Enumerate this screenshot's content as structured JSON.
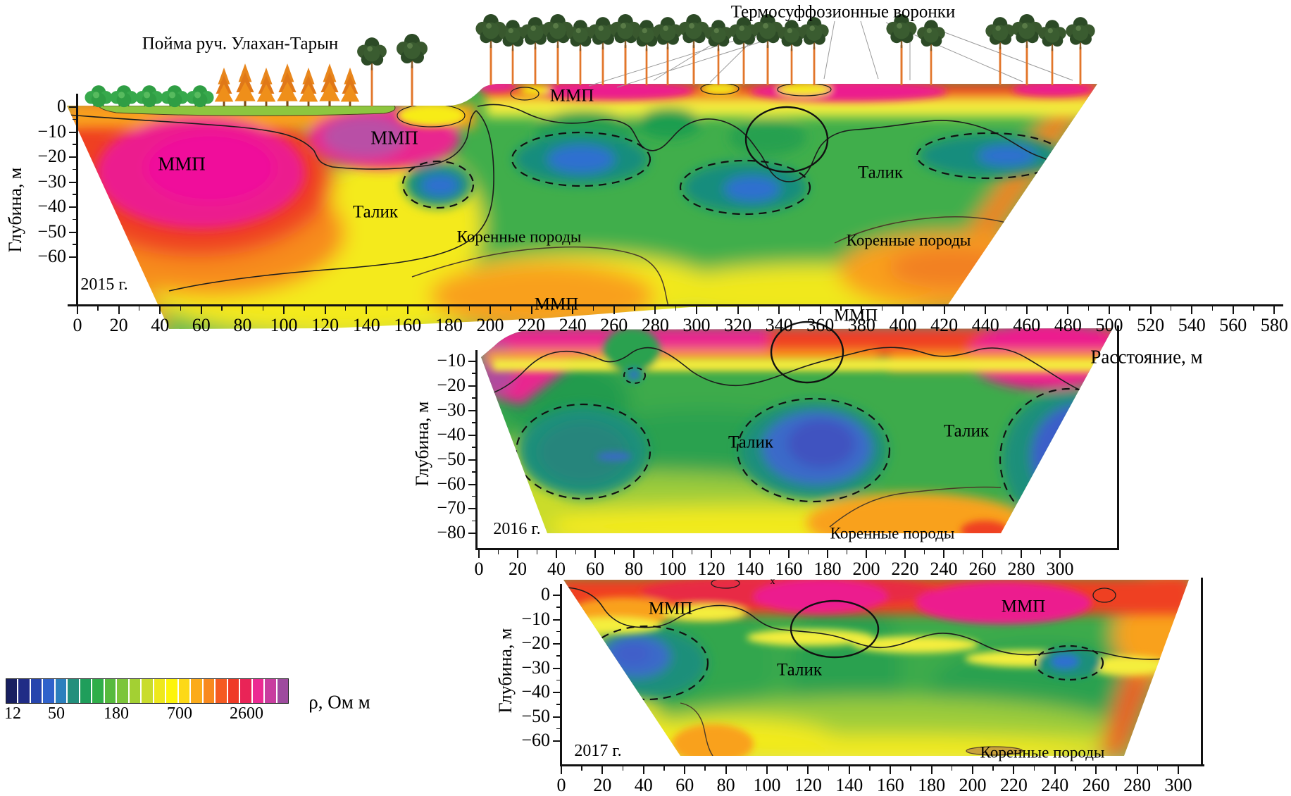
{
  "figure": {
    "titles": {
      "floodplain_title": "Пойма руч. Улахан-Тарын",
      "funnels_title": "Термосуффозионные воронки"
    },
    "axes": {
      "distance_label": "Расстояние, м",
      "depth_label": "Глубина, м"
    },
    "colorbar": {
      "label": "ρ, Ом м",
      "tick_labels": [
        "12",
        "50",
        "180",
        "700",
        "2600"
      ],
      "colors": [
        "#181f60",
        "#202c86",
        "#2745ad",
        "#2f62cb",
        "#2b7fbd",
        "#238f7c",
        "#1f9e5b",
        "#2fae49",
        "#56ba3e",
        "#7cc53a",
        "#a3d033",
        "#c9dc2c",
        "#eee81c",
        "#fdf40a",
        "#fdd916",
        "#fbab1b",
        "#f8891e",
        "#f55a21",
        "#ef3a26",
        "#e92457",
        "#ec2b92",
        "#c83d9f",
        "#9e4b9e"
      ]
    },
    "key_colors": {
      "permafrost_magenta": "#ec1c8e",
      "high_resistivity_red": "#ef4123",
      "talik_green": "#3cab4c",
      "low_resistivity_blue": "#3a6bc9",
      "bedrock_orange": "#f9a11b"
    },
    "vegetation": {
      "bush_count": 5,
      "larch_count": 7,
      "pine_count": 23
    },
    "sections": [
      {
        "id": "2015",
        "year_label": "2015 г.",
        "x_ticks": [
          "0",
          "20",
          "40",
          "60",
          "80",
          "100",
          "120",
          "140",
          "160",
          "180",
          "200",
          "220",
          "240",
          "260",
          "280",
          "300",
          "320",
          "340",
          "360",
          "380",
          "400",
          "420",
          "440",
          "460",
          "480",
          "500",
          "520",
          "540",
          "560",
          "580"
        ],
        "y_ticks": [
          "0",
          "−10",
          "−20",
          "−30",
          "−40",
          "−50",
          "−60"
        ],
        "labels": {
          "mmp_left": "ММП",
          "mmp_floodplain": "ММП",
          "mmp_top": "ММП",
          "talik_left": "Талик",
          "talik_right": "Талик",
          "bedrock_center": "Коренные породы",
          "bedrock_right": "Коренные породы"
        }
      },
      {
        "id": "2016",
        "year_label": "2016 г.",
        "x_ticks": [
          "0",
          "20",
          "40",
          "60",
          "80",
          "100",
          "120",
          "140",
          "160",
          "180",
          "200",
          "220",
          "240",
          "260",
          "280",
          "300"
        ],
        "y_ticks": [
          "−10",
          "−20",
          "−30",
          "−40",
          "−50",
          "−60",
          "−70",
          "−80"
        ],
        "labels": {
          "mmp_top": "ММП",
          "mmp_right": "ММП",
          "talik_center": "Талик",
          "talik_right": "Талик",
          "bedrock": "Коренные породы"
        }
      },
      {
        "id": "2017",
        "year_label": "2017 г.",
        "x_ticks": [
          "0",
          "20",
          "40",
          "60",
          "80",
          "100",
          "120",
          "140",
          "160",
          "180",
          "200",
          "220",
          "240",
          "260",
          "280",
          "300"
        ],
        "y_ticks": [
          "0",
          "−10",
          "−20",
          "−30",
          "−40",
          "−50",
          "−60"
        ],
        "labels": {
          "mmp_left": "ММП",
          "mmp_right": "ММП",
          "talik": "Талик",
          "bedrock": "Коренные породы",
          "marker": "x"
        }
      }
    ]
  },
  "chart_data": {
    "type": "heatmap",
    "subtype": "electrical_resistivity_tomography_depth_sections",
    "units": {
      "distance": "м",
      "depth": "м",
      "resistivity": "Ом·м"
    },
    "x_axis_label": "Расстояние, м",
    "y_axis_label": "Глубина, м",
    "colorbar": {
      "label": "ρ, Ом м",
      "scale": "logarithmic",
      "ticks": [
        12,
        50,
        180,
        700,
        2600
      ]
    },
    "surface_annotations": [
      {
        "text": "Пойма руч. Улахан-Тарын",
        "section": 2015,
        "x_m": [
          0,
          190
        ]
      },
      {
        "text": "Термосуффозионные воронки",
        "section": 2015,
        "x_m": [
          280,
          500
        ]
      }
    ],
    "sections": [
      {
        "year": 2015,
        "x_range_m": [
          0,
          580
        ],
        "x_tick_step_m": 20,
        "depth_ticks_m": [
          0,
          -10,
          -20,
          -30,
          -40,
          -50,
          -60
        ],
        "depth_tick_step_m": 10,
        "zones": [
          {
            "label": "ММП",
            "kind": "permafrost_high_resistivity",
            "x_m": [
              0,
              120
            ],
            "depth_m": [
              0,
              -60
            ],
            "peak_resistivity_ohm_m": 2600
          },
          {
            "label": "ММП",
            "kind": "permafrost_high_resistivity",
            "x_m": [
              115,
              200
            ],
            "depth_m": [
              0,
              -28
            ]
          },
          {
            "label": "ММП",
            "kind": "frozen_surface_cap",
            "x_m": [
              200,
              495
            ],
            "depth_m": [
              0,
              -12
            ]
          },
          {
            "label": "Талик",
            "kind": "unfrozen_zone",
            "x_m": [
              130,
              210
            ],
            "depth_m": [
              -28,
              -65
            ]
          },
          {
            "label": "Талик",
            "kind": "unfrozen_zone",
            "x_m": [
              205,
              495
            ],
            "depth_m": [
              -12,
              -60
            ]
          },
          {
            "kind": "low_resistivity_lens",
            "x_m": [
              162,
              193
            ],
            "depth_m": [
              -28,
              -47
            ]
          },
          {
            "kind": "low_resistivity_lens",
            "x_m": [
              213,
              275
            ],
            "depth_m": [
              -25,
              -46
            ]
          },
          {
            "kind": "low_resistivity_lens",
            "x_m": [
              295,
              352
            ],
            "depth_m": [
              -38,
              -58
            ]
          },
          {
            "kind": "low_resistivity_lens",
            "x_m": [
              410,
              477
            ],
            "depth_m": [
              -25,
              -44
            ]
          },
          {
            "label": "Коренные породы",
            "kind": "bedrock",
            "x_m": [
              163,
              290
            ],
            "depth_m": [
              -68,
              -85
            ]
          },
          {
            "label": "Коренные породы",
            "kind": "bedrock",
            "x_m": [
              367,
              480
            ],
            "depth_m": [
              -63,
              -80
            ]
          }
        ],
        "highlight_ellipse": {
          "x_m": [
            322,
            362
          ],
          "depth_m": [
            0,
            -27
          ]
        }
      },
      {
        "year": 2016,
        "x_range_m": [
          0,
          300
        ],
        "x_tick_step_m": 20,
        "depth_ticks_m": [
          -10,
          -20,
          -30,
          -40,
          -50,
          -60,
          -70,
          -80
        ],
        "depth_tick_step_m": 10,
        "zones": [
          {
            "label": "ММП",
            "kind": "frozen_surface_cap",
            "x_m": [
              0,
              330
            ],
            "depth_m": [
              0,
              -15
            ]
          },
          {
            "label": "ММП",
            "kind": "permafrost_high_resistivity",
            "x_m": [
              255,
              330
            ],
            "depth_m": [
              0,
              -25
            ]
          },
          {
            "label": "Талик",
            "kind": "unfrozen_zone",
            "x_m": [
              20,
              330
            ],
            "depth_m": [
              -15,
              -70
            ]
          },
          {
            "kind": "low_resistivity_lens",
            "x_m": [
              25,
              85
            ],
            "depth_m": [
              -33,
              -57
            ]
          },
          {
            "kind": "low_resistivity_lens",
            "x_m": [
              137,
              210
            ],
            "depth_m": [
              -33,
              -57
            ]
          },
          {
            "kind": "low_resistivity_lens",
            "x_m": [
              273,
              330
            ],
            "depth_m": [
              -28,
              -62
            ]
          },
          {
            "label": "Коренные породы",
            "kind": "bedrock",
            "x_m": [
              180,
              270
            ],
            "depth_m": [
              -65,
              -87
            ]
          }
        ],
        "highlight_ellipse": {
          "x_m": [
            150,
            188
          ],
          "depth_m": [
            -1,
            -20
          ]
        }
      },
      {
        "year": 2017,
        "x_range_m": [
          0,
          300
        ],
        "x_tick_step_m": 20,
        "depth_ticks_m": [
          0,
          -10,
          -20,
          -30,
          -40,
          -50,
          -60
        ],
        "depth_tick_step_m": 10,
        "zones": [
          {
            "label": "ММП",
            "kind": "frozen_surface_cap",
            "x_m": [
              0,
              305
            ],
            "depth_m": [
              0,
              -18
            ]
          },
          {
            "label": "ММП",
            "kind": "permafrost_high_resistivity",
            "x_m": [
              170,
              260
            ],
            "depth_m": [
              0,
              -15
            ]
          },
          {
            "label": "Талик",
            "kind": "unfrozen_zone",
            "x_m": [
              5,
              300
            ],
            "depth_m": [
              -18,
              -60
            ]
          },
          {
            "kind": "low_resistivity_lens",
            "x_m": [
              15,
              70
            ],
            "depth_m": [
              -15,
              -40
            ]
          },
          {
            "kind": "low_resistivity_lens",
            "x_m": [
              232,
              262
            ],
            "depth_m": [
              -25,
              -32
            ]
          },
          {
            "label": "Коренные породы",
            "kind": "bedrock",
            "x_m": [
              195,
              300
            ],
            "depth_m": [
              -60,
              -75
            ]
          }
        ],
        "highlight_ellipse": {
          "x_m": [
            112,
            154
          ],
          "depth_m": [
            -2,
            -26
          ]
        },
        "surface_marker_x_m": 102
      }
    ]
  }
}
